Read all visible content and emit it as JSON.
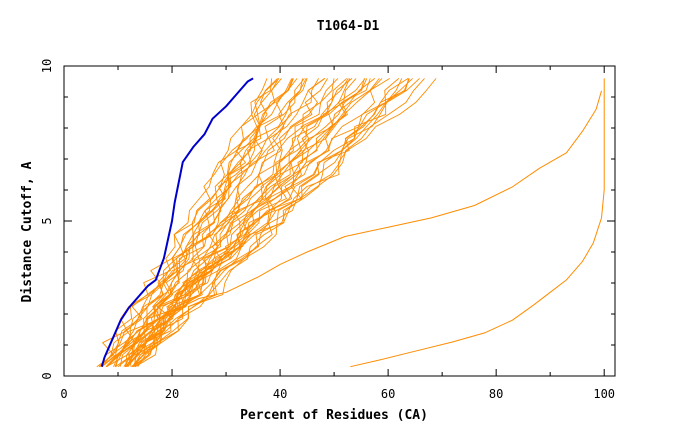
{
  "chart_data": {
    "type": "line",
    "title": "T1064-D1",
    "xlabel": "Percent of Residues (CA)",
    "ylabel": "Distance Cutoff, A",
    "xlim": [
      0,
      102
    ],
    "ylim": [
      0,
      10
    ],
    "x_ticks": [
      0,
      20,
      40,
      60,
      80,
      100
    ],
    "y_ticks": [
      0,
      5,
      10
    ],
    "grid": false,
    "legend": "none",
    "colors": {
      "highlight": "#0000cc",
      "others": "#ff8c00"
    },
    "highlight_series": {
      "x": [
        7.0,
        7.5,
        9.0,
        10.5,
        12.0,
        14.0,
        15.5,
        17.0,
        18.5,
        20.0,
        20.5,
        22.0,
        24.0,
        26.0,
        27.5,
        30.0,
        32.0,
        34.0,
        35.0
      ],
      "y": [
        0.3,
        0.6,
        1.2,
        1.8,
        2.2,
        2.6,
        2.9,
        3.1,
        3.8,
        5.0,
        5.6,
        6.9,
        7.4,
        7.8,
        8.3,
        8.7,
        9.1,
        9.5,
        9.6
      ]
    },
    "outlier_series": [
      {
        "x": [
          53.0,
          58.0,
          65.0,
          72.0,
          78.0,
          83.0,
          87.0,
          90.0,
          93.0,
          96.0,
          98.0,
          99.5
        ],
        "y": [
          0.3,
          0.5,
          0.8,
          1.1,
          1.4,
          1.8,
          2.3,
          2.7,
          3.1,
          3.7,
          4.3,
          5.1
        ]
      },
      {
        "x": [
          7.0,
          12.0,
          18.0,
          25.0,
          30.0,
          36.0,
          40.0,
          45.0,
          52.0,
          60.0,
          68.0,
          76.0,
          83.0,
          88.0,
          93.0,
          96.0,
          98.5,
          99.5
        ],
        "y": [
          0.3,
          1.0,
          1.9,
          2.5,
          2.7,
          3.2,
          3.6,
          4.0,
          4.5,
          4.8,
          5.1,
          5.5,
          6.1,
          6.7,
          7.2,
          7.9,
          8.6,
          9.2
        ]
      },
      {
        "x": [
          99.5,
          100.0,
          100.0,
          100.0
        ],
        "y": [
          5.1,
          6.0,
          8.0,
          9.6
        ]
      }
    ],
    "cluster": {
      "n_lines": 42,
      "x_start_range": [
        6.0,
        14.0
      ],
      "x_end_range": [
        38.0,
        68.0
      ],
      "y_range": [
        0.3,
        9.6
      ]
    }
  }
}
